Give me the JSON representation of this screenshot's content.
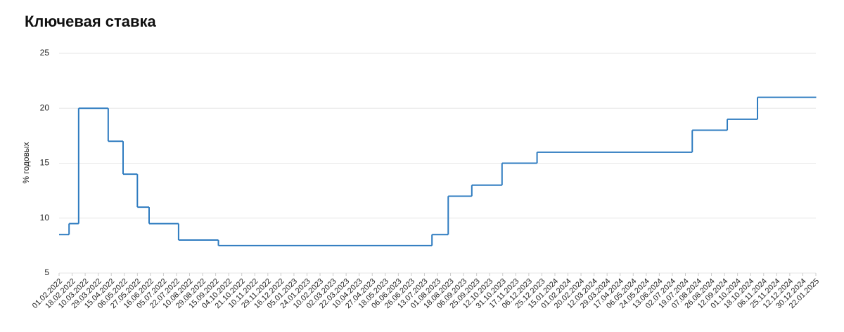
{
  "chart_data": {
    "type": "line",
    "title": "Ключевая ставка",
    "ylabel": "% годовых",
    "xlim": [
      "01.02.2022",
      "22.01.2025"
    ],
    "ylim": [
      5,
      25
    ],
    "yticks": [
      5,
      10,
      15,
      20,
      25
    ],
    "grid": true,
    "xticks": [
      "01.02.2022",
      "18.02.2022",
      "10.03.2022",
      "29.03.2022",
      "15.04.2022",
      "06.05.2022",
      "27.05.2022",
      "16.06.2022",
      "05.07.2022",
      "22.07.2022",
      "10.08.2022",
      "29.08.2022",
      "15.09.2022",
      "04.10.2022",
      "21.10.2022",
      "10.11.2022",
      "29.11.2022",
      "16.12.2022",
      "05.01.2023",
      "24.01.2023",
      "10.02.2023",
      "02.03.2023",
      "22.03.2023",
      "10.04.2023",
      "27.04.2023",
      "18.05.2023",
      "06.06.2023",
      "26.06.2023",
      "13.07.2023",
      "01.08.2023",
      "18.08.2023",
      "06.09.2023",
      "25.09.2023",
      "12.10.2023",
      "31.10.2023",
      "17.11.2023",
      "06.12.2023",
      "25.12.2023",
      "15.01.2024",
      "01.02.2024",
      "20.02.2024",
      "12.03.2024",
      "29.03.2024",
      "17.04.2024",
      "06.05.2024",
      "24.05.2024",
      "13.06.2024",
      "02.07.2024",
      "19.07.2024",
      "07.08.2024",
      "26.08.2024",
      "12.09.2024",
      "01.10.2024",
      "18.10.2024",
      "06.11.2024",
      "25.11.2024",
      "12.12.2024",
      "30.12.2024",
      "22.01.2025"
    ],
    "series": [
      {
        "color": "#2f7cc0",
        "x": [
          "01.02.2022",
          "14.02.2022",
          "28.02.2022",
          "11.04.2022",
          "04.05.2022",
          "27.05.2022",
          "14.06.2022",
          "25.07.2022",
          "19.09.2022",
          "24.07.2023",
          "15.08.2023",
          "18.09.2023",
          "30.10.2023",
          "18.12.2023",
          "29.07.2024",
          "16.09.2024",
          "28.10.2024",
          "22.01.2025"
        ],
        "values": [
          8.5,
          9.5,
          20,
          17,
          14,
          11,
          9.5,
          8,
          7.5,
          8.5,
          12,
          13,
          15,
          16,
          18,
          19,
          21,
          21
        ]
      }
    ]
  }
}
